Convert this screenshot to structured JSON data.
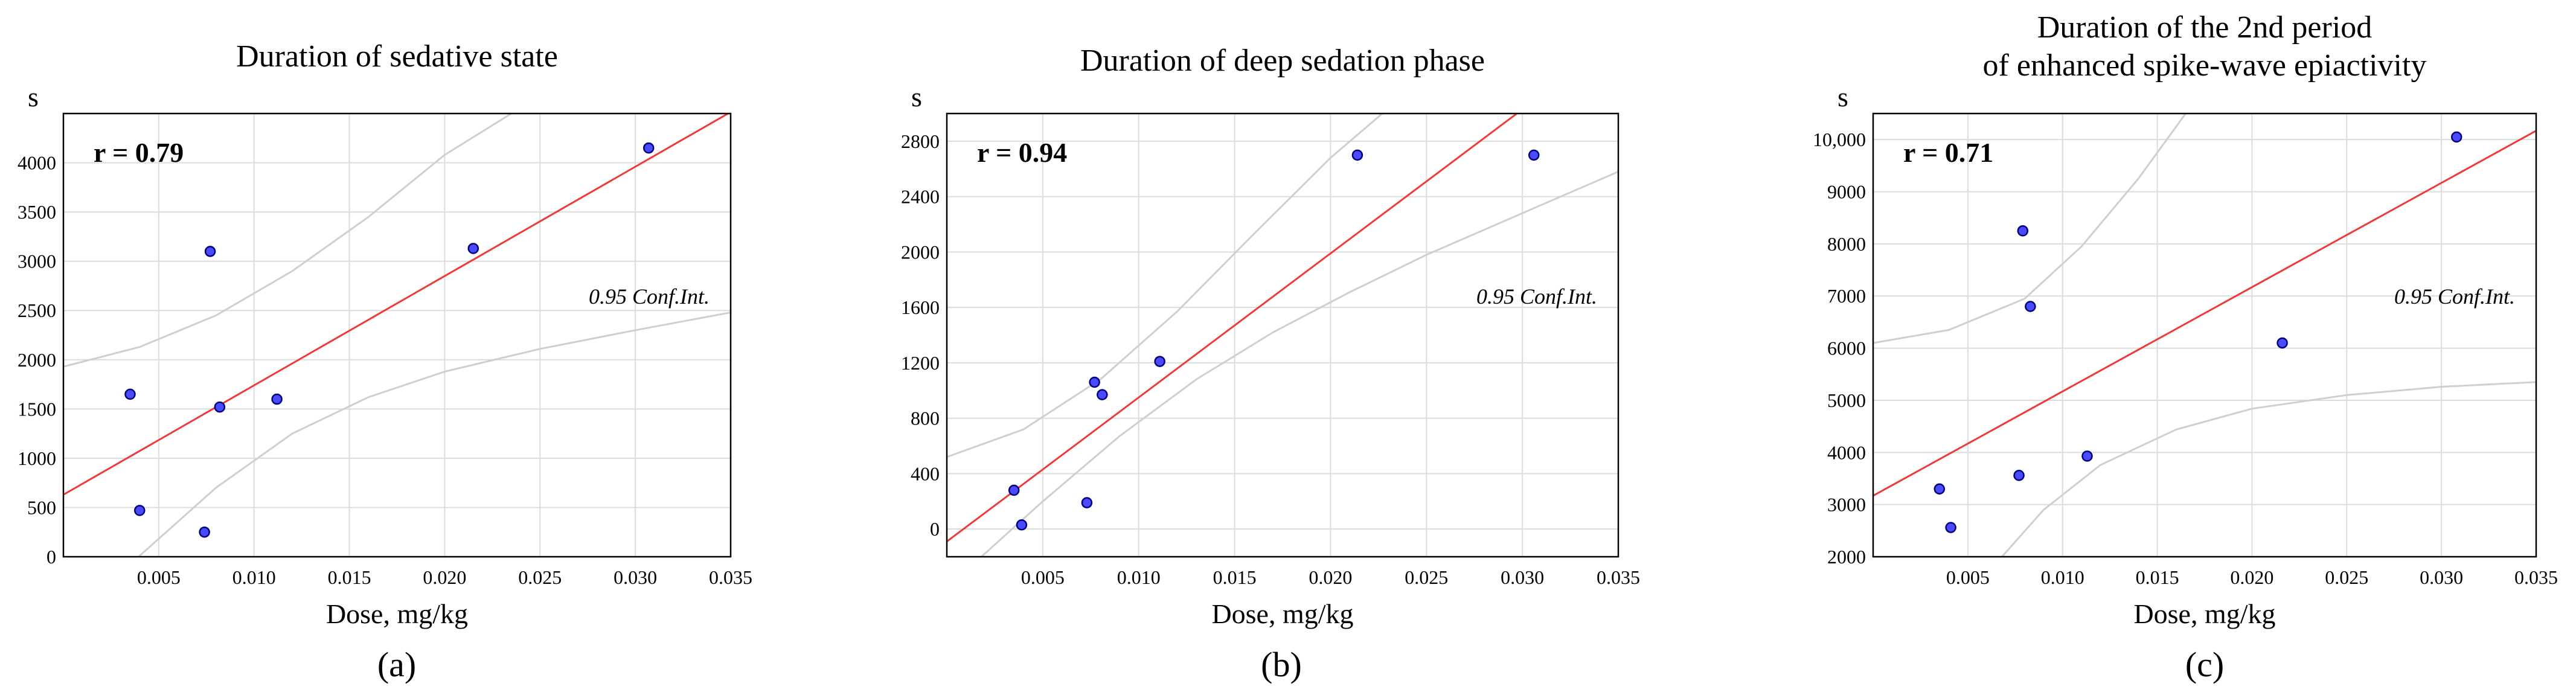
{
  "colors": {
    "fit_line": "#f03a3a",
    "points": "#4a4aff",
    "ci_band": "#cfcfcf"
  },
  "chart_data": [
    {
      "type": "scatter",
      "panel_label": "(a)",
      "title_lines": [
        "Duration of sedative state"
      ],
      "xlabel": "Dose, mg/kg",
      "ylabel": "s",
      "r_label": "r = 0.79",
      "ci_label": "0.95 Conf.Int.",
      "xlim": [
        0,
        0.035
      ],
      "ylim": [
        0,
        4500
      ],
      "xticks": [
        0.005,
        0.01,
        0.015,
        0.02,
        0.025,
        0.03,
        0.035
      ],
      "xtick_labels": [
        "0.005",
        "0.010",
        "0.015",
        "0.020",
        "0.025",
        "0.030",
        "0.035"
      ],
      "yticks": [
        0,
        500,
        1000,
        1500,
        2000,
        2500,
        3000,
        3500,
        4000
      ],
      "ytick_labels": [
        "0",
        "500",
        "1000",
        "1500",
        "2000",
        "2500",
        "3000",
        "3500",
        "4000"
      ],
      "points": [
        {
          "x": 0.0035,
          "y": 1650
        },
        {
          "x": 0.004,
          "y": 470
        },
        {
          "x": 0.0074,
          "y": 250
        },
        {
          "x": 0.0077,
          "y": 3100
        },
        {
          "x": 0.0082,
          "y": 1520
        },
        {
          "x": 0.0112,
          "y": 1600
        },
        {
          "x": 0.0215,
          "y": 3130
        },
        {
          "x": 0.0307,
          "y": 4150
        }
      ],
      "fit": {
        "slope": 111000,
        "intercept": 630
      },
      "ci_lower": [
        {
          "x": 0.0,
          "y": -900
        },
        {
          "x": 0.004,
          "y": 10
        },
        {
          "x": 0.008,
          "y": 700
        },
        {
          "x": 0.012,
          "y": 1250
        },
        {
          "x": 0.016,
          "y": 1620
        },
        {
          "x": 0.02,
          "y": 1880
        },
        {
          "x": 0.025,
          "y": 2110
        },
        {
          "x": 0.03,
          "y": 2300
        },
        {
          "x": 0.035,
          "y": 2480
        }
      ],
      "ci_upper": [
        {
          "x": 0.0,
          "y": 1930
        },
        {
          "x": 0.004,
          "y": 2130
        },
        {
          "x": 0.008,
          "y": 2450
        },
        {
          "x": 0.012,
          "y": 2900
        },
        {
          "x": 0.016,
          "y": 3450
        },
        {
          "x": 0.02,
          "y": 4080
        },
        {
          "x": 0.0235,
          "y": 4500
        }
      ]
    },
    {
      "type": "scatter",
      "panel_label": "(b)",
      "title_lines": [
        "Duration of deep sedation phase"
      ],
      "xlabel": "Dose, mg/kg",
      "ylabel": "s",
      "r_label": "r = 0.94",
      "ci_label": "0.95 Conf.Int.",
      "xlim": [
        0,
        0.035
      ],
      "ylim": [
        -200,
        3000
      ],
      "xticks": [
        0.005,
        0.01,
        0.015,
        0.02,
        0.025,
        0.03,
        0.035
      ],
      "xtick_labels": [
        "0.005",
        "0.010",
        "0.015",
        "0.020",
        "0.025",
        "0.030",
        "0.035"
      ],
      "yticks": [
        0,
        400,
        800,
        1200,
        1600,
        2000,
        2400,
        2800
      ],
      "ytick_labels": [
        "0",
        "400",
        "800",
        "1200",
        "1600",
        "2000",
        "2400",
        "2800"
      ],
      "points": [
        {
          "x": 0.0035,
          "y": 280
        },
        {
          "x": 0.0039,
          "y": 30
        },
        {
          "x": 0.0073,
          "y": 190
        },
        {
          "x": 0.0077,
          "y": 1060
        },
        {
          "x": 0.0081,
          "y": 970
        },
        {
          "x": 0.0111,
          "y": 1210
        },
        {
          "x": 0.0214,
          "y": 2700
        },
        {
          "x": 0.0306,
          "y": 2700
        }
      ],
      "fit": {
        "slope": 104000,
        "intercept": -90
      },
      "ci_lower": [
        {
          "x": 0.0018,
          "y": -200
        },
        {
          "x": 0.005,
          "y": 200
        },
        {
          "x": 0.009,
          "y": 670
        },
        {
          "x": 0.013,
          "y": 1080
        },
        {
          "x": 0.017,
          "y": 1420
        },
        {
          "x": 0.021,
          "y": 1710
        },
        {
          "x": 0.025,
          "y": 1980
        },
        {
          "x": 0.03,
          "y": 2280
        },
        {
          "x": 0.035,
          "y": 2580
        }
      ],
      "ci_upper": [
        {
          "x": 0.0,
          "y": 520
        },
        {
          "x": 0.004,
          "y": 720
        },
        {
          "x": 0.008,
          "y": 1080
        },
        {
          "x": 0.012,
          "y": 1570
        },
        {
          "x": 0.016,
          "y": 2130
        },
        {
          "x": 0.02,
          "y": 2680
        },
        {
          "x": 0.0227,
          "y": 3000
        }
      ]
    },
    {
      "type": "scatter",
      "panel_label": "(c)",
      "title_lines": [
        "Duration of the 2nd period",
        "of enhanced spike-wave epiactivity"
      ],
      "xlabel": "Dose, mg/kg",
      "ylabel": "s",
      "r_label": "r = 0.71",
      "ci_label": "0.95 Conf.Int.",
      "xlim": [
        0,
        0.035
      ],
      "ylim": [
        2000,
        10500
      ],
      "xticks": [
        0.005,
        0.01,
        0.015,
        0.02,
        0.025,
        0.03,
        0.035
      ],
      "xtick_labels": [
        "0.005",
        "0.010",
        "0.015",
        "0.020",
        "0.025",
        "0.030",
        "0.035"
      ],
      "yticks": [
        2000,
        3000,
        4000,
        5000,
        6000,
        7000,
        8000,
        9000,
        10000
      ],
      "ytick_labels": [
        "2000",
        "3000",
        "4000",
        "5000",
        "6000",
        "7000",
        "8000",
        "9000",
        "10,000"
      ],
      "points": [
        {
          "x": 0.0035,
          "y": 3300
        },
        {
          "x": 0.0041,
          "y": 2560
        },
        {
          "x": 0.0077,
          "y": 3560
        },
        {
          "x": 0.0079,
          "y": 8250
        },
        {
          "x": 0.0083,
          "y": 6800
        },
        {
          "x": 0.0113,
          "y": 3930
        },
        {
          "x": 0.0216,
          "y": 6100
        },
        {
          "x": 0.0308,
          "y": 10050
        }
      ],
      "fit": {
        "slope": 200000,
        "intercept": 3170
      },
      "ci_lower": [
        {
          "x": 0.0068,
          "y": 2000
        },
        {
          "x": 0.009,
          "y": 2900
        },
        {
          "x": 0.012,
          "y": 3760
        },
        {
          "x": 0.016,
          "y": 4440
        },
        {
          "x": 0.02,
          "y": 4840
        },
        {
          "x": 0.025,
          "y": 5100
        },
        {
          "x": 0.03,
          "y": 5260
        },
        {
          "x": 0.035,
          "y": 5350
        }
      ],
      "ci_upper": [
        {
          "x": 0.0,
          "y": 6100
        },
        {
          "x": 0.004,
          "y": 6350
        },
        {
          "x": 0.008,
          "y": 6950
        },
        {
          "x": 0.011,
          "y": 7950
        },
        {
          "x": 0.014,
          "y": 9250
        },
        {
          "x": 0.0165,
          "y": 10500
        }
      ]
    }
  ]
}
